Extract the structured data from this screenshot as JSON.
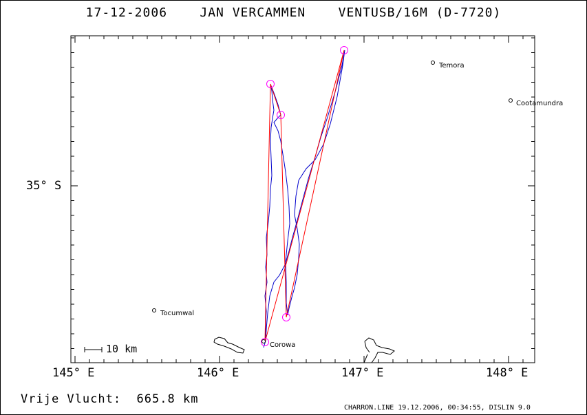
{
  "header": {
    "title": "17-12-2006    JAN VERCAMMEN    VENTUSB/16M (D-7720)"
  },
  "axes": {
    "x_ticks": [
      "145° E",
      "146° E",
      "147° E",
      "148° E"
    ],
    "y_ticks": [
      "35° S"
    ]
  },
  "towns": [
    {
      "name": "Temora",
      "lon": 147.45,
      "lat": -34.44
    },
    {
      "name": "Cootamundra",
      "lon": 148.02,
      "lat": -34.62
    },
    {
      "name": "Tocumwal",
      "lon": 145.55,
      "lat": -35.81
    },
    {
      "name": "Corowa",
      "lon": 146.33,
      "lat": -36.0
    }
  ],
  "scale_bar": {
    "label": "10 km"
  },
  "turnpoints": [
    {
      "lon": 146.88,
      "lat": -34.31
    },
    {
      "lon": 146.35,
      "lat": -34.48
    },
    {
      "lon": 146.42,
      "lat": -34.62
    },
    {
      "lon": 146.46,
      "lat": -35.89
    },
    {
      "lon": 146.31,
      "lat": -36.0
    }
  ],
  "distance": {
    "label": "Vrije Vlucht:",
    "value": "665.8 km"
  },
  "footer": {
    "text": "CHARRON.LINE 19.12.2006, 00:34:55, DISLIN 9.0"
  },
  "colors": {
    "task": "#ff0000",
    "track": "#0000cc",
    "turnpoint": "#ff00ff"
  }
}
